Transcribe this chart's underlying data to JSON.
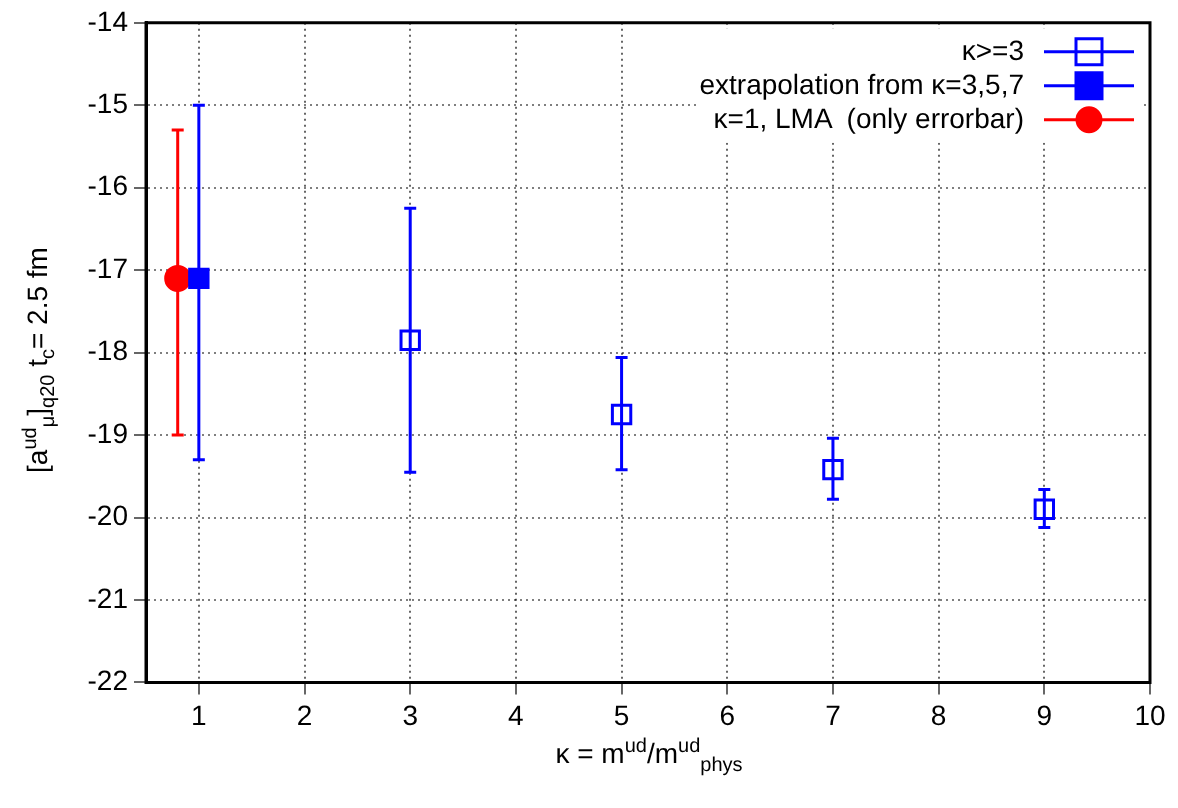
{
  "chart_data": {
    "type": "scatter",
    "xlabel": "κ = m$^{ud}$/m$^{ud}$$_{phys}$",
    "ylabel": "[a$^{ud}$$_{μ}$]$_{q20}$   t$_{c}$= 2.5 fm",
    "xlim": [
      0.5,
      10
    ],
    "xticks": [
      1,
      2,
      3,
      4,
      5,
      6,
      7,
      8,
      9,
      10
    ],
    "ylim": [
      -22,
      -14
    ],
    "yticks": [
      -22,
      -21,
      -20,
      -19,
      -18,
      -17,
      -16,
      -15,
      -14
    ],
    "grid": true,
    "legend": "top right",
    "series": [
      {
        "name": "κ>=3",
        "color": "#0000ff",
        "marker": "square",
        "x": [
          3,
          5,
          7,
          9
        ],
        "values": [
          -17.85,
          -18.75,
          -19.42,
          -19.9
        ],
        "errors": [
          [
            -19.45,
            -16.25
          ],
          [
            -19.42,
            -18.06
          ],
          [
            -19.78,
            -19.04
          ],
          [
            -20.12,
            -19.66
          ]
        ]
      },
      {
        "name": "extrapolation from κ=3,5,7",
        "color": "#0000ff",
        "marker": "square",
        "x": [
          1
        ],
        "values": [
          -17.1
        ],
        "errors": [
          [
            -19.3,
            -15.0
          ]
        ]
      },
      {
        "name": "κ=1, LMA  (only errorbar)",
        "color": "#ff0000",
        "marker": "circle",
        "x": [
          0.8
        ],
        "values": [
          -17.1
        ],
        "errors": [
          [
            -19.0,
            -15.3
          ]
        ]
      }
    ]
  }
}
